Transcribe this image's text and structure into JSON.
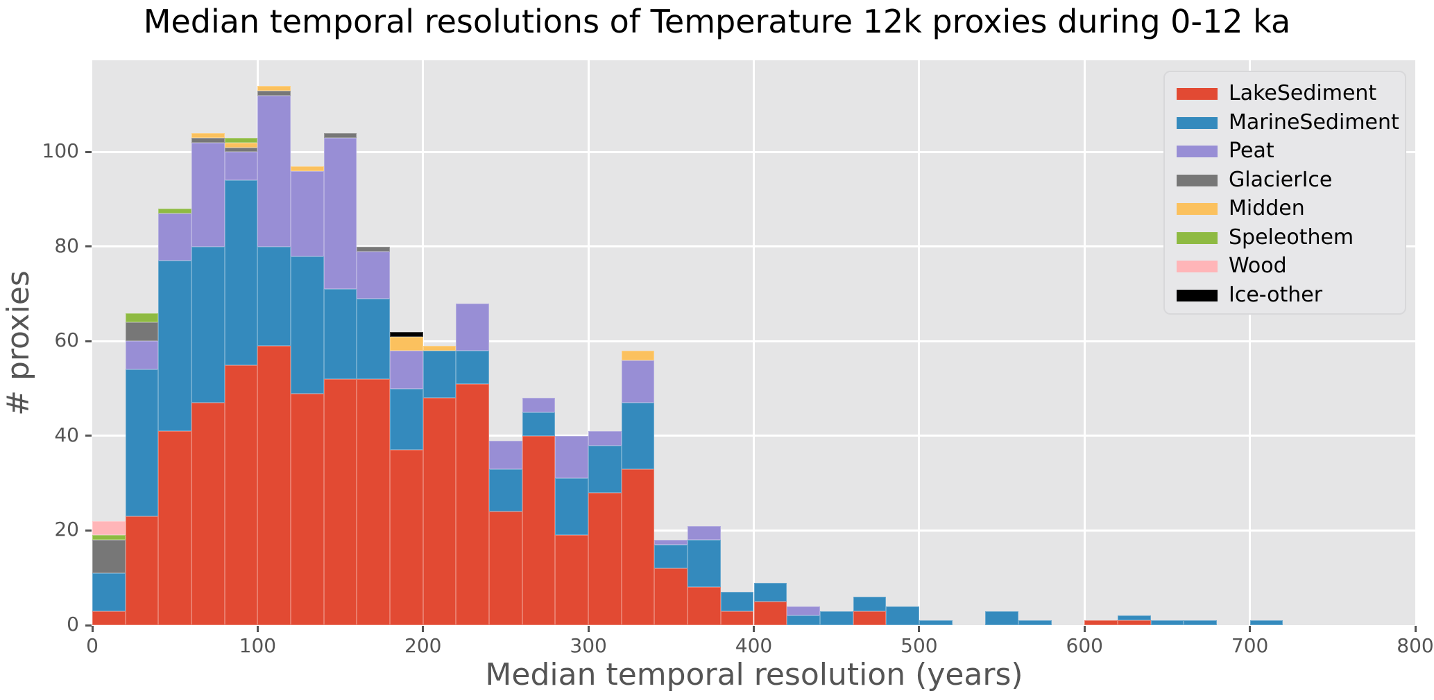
{
  "title": "Median temporal resolutions of Temperature 12k proxies during 0-12 ka",
  "chart_data": {
    "type": "bar",
    "subtype": "stacked_histogram",
    "title": "Median temporal resolutions of Temperature 12k proxies during 0-12 ka",
    "xlabel": "Median temporal resolution (years)",
    "ylabel": "# proxies",
    "xlim": [
      0,
      800
    ],
    "ylim": [
      0,
      119.4
    ],
    "x_ticks": [
      0,
      100,
      200,
      300,
      400,
      500,
      600,
      700,
      800
    ],
    "y_ticks": [
      0,
      20,
      40,
      60,
      80,
      100
    ],
    "grid": "white gridlines on light gray background",
    "legend_position": "upper right",
    "bin_width_years": 20,
    "bin_starts": [
      0,
      20,
      40,
      60,
      80,
      100,
      120,
      140,
      160,
      180,
      200,
      220,
      240,
      260,
      280,
      300,
      320,
      340,
      360,
      380,
      400,
      420,
      440,
      460,
      480,
      500,
      520,
      540,
      560,
      580,
      600,
      620,
      640,
      660,
      680,
      700,
      720,
      740,
      760,
      780
    ],
    "series": [
      {
        "name": "LakeSediment",
        "color": "#E24A33",
        "values": [
          3,
          23,
          41,
          47,
          55,
          59,
          49,
          52,
          52,
          37,
          48,
          51,
          24,
          40,
          19,
          28,
          33,
          12,
          8,
          3,
          5,
          0,
          0,
          3,
          0,
          0,
          0,
          0,
          0,
          0,
          1,
          1,
          0,
          0,
          0,
          0,
          0,
          0,
          0,
          0
        ]
      },
      {
        "name": "MarineSediment",
        "color": "#348ABD",
        "values": [
          8,
          31,
          36,
          33,
          39,
          21,
          29,
          19,
          17,
          13,
          10,
          7,
          9,
          5,
          12,
          10,
          14,
          5,
          10,
          4,
          4,
          2,
          3,
          3,
          4,
          1,
          0,
          3,
          1,
          0,
          0,
          1,
          1,
          1,
          0,
          1,
          0,
          0,
          0,
          0
        ]
      },
      {
        "name": "Peat",
        "color": "#988ED5",
        "values": [
          0,
          6,
          10,
          22,
          6,
          32,
          18,
          32,
          10,
          8,
          0,
          10,
          6,
          3,
          9,
          3,
          9,
          1,
          3,
          0,
          0,
          2,
          0,
          0,
          0,
          0,
          0,
          0,
          0,
          0,
          0,
          0,
          0,
          0,
          0,
          0,
          0,
          0,
          0,
          0
        ]
      },
      {
        "name": "GlacierIce",
        "color": "#777777",
        "values": [
          7,
          4,
          0,
          1,
          1,
          1,
          0,
          1,
          1,
          0,
          0,
          0,
          0,
          0,
          0,
          0,
          0,
          0,
          0,
          0,
          0,
          0,
          0,
          0,
          0,
          0,
          0,
          0,
          0,
          0,
          0,
          0,
          0,
          0,
          0,
          0,
          0,
          0,
          0,
          0
        ]
      },
      {
        "name": "Midden",
        "color": "#FBC15E",
        "values": [
          0,
          0,
          0,
          1,
          1,
          1,
          1,
          0,
          0,
          3,
          1,
          0,
          0,
          0,
          0,
          0,
          2,
          0,
          0,
          0,
          0,
          0,
          0,
          0,
          0,
          0,
          0,
          0,
          0,
          0,
          0,
          0,
          0,
          0,
          0,
          0,
          0,
          0,
          0,
          0
        ]
      },
      {
        "name": "Speleothem",
        "color": "#8EBA42",
        "values": [
          1,
          2,
          1,
          0,
          1,
          0,
          0,
          0,
          0,
          0,
          0,
          0,
          0,
          0,
          0,
          0,
          0,
          0,
          0,
          0,
          0,
          0,
          0,
          0,
          0,
          0,
          0,
          0,
          0,
          0,
          0,
          0,
          0,
          0,
          0,
          0,
          0,
          0,
          0,
          0
        ]
      },
      {
        "name": "Wood",
        "color": "#FFB5B8",
        "values": [
          3,
          0,
          0,
          0,
          0,
          0,
          0,
          0,
          0,
          0,
          0,
          0,
          0,
          0,
          0,
          0,
          0,
          0,
          0,
          0,
          0,
          0,
          0,
          0,
          0,
          0,
          0,
          0,
          0,
          0,
          0,
          0,
          0,
          0,
          0,
          0,
          0,
          0,
          0,
          0
        ]
      },
      {
        "name": "Ice-other",
        "color": "#000000",
        "values": [
          0,
          0,
          0,
          0,
          0,
          0,
          0,
          0,
          0,
          1,
          0,
          0,
          0,
          0,
          0,
          0,
          0,
          0,
          0,
          0,
          0,
          0,
          0,
          0,
          0,
          0,
          0,
          0,
          0,
          0,
          0,
          0,
          0,
          0,
          0,
          0,
          0,
          0,
          0,
          0
        ]
      }
    ]
  },
  "colors": {
    "figure_background": "#FFFFFF",
    "plot_background": "#E5E5E6",
    "gridline": "#FFFFFF",
    "tick_and_label": "#555555",
    "title_text": "#000000",
    "legend_background": "#E7E7E9",
    "legend_border": "#D8D8DA"
  }
}
